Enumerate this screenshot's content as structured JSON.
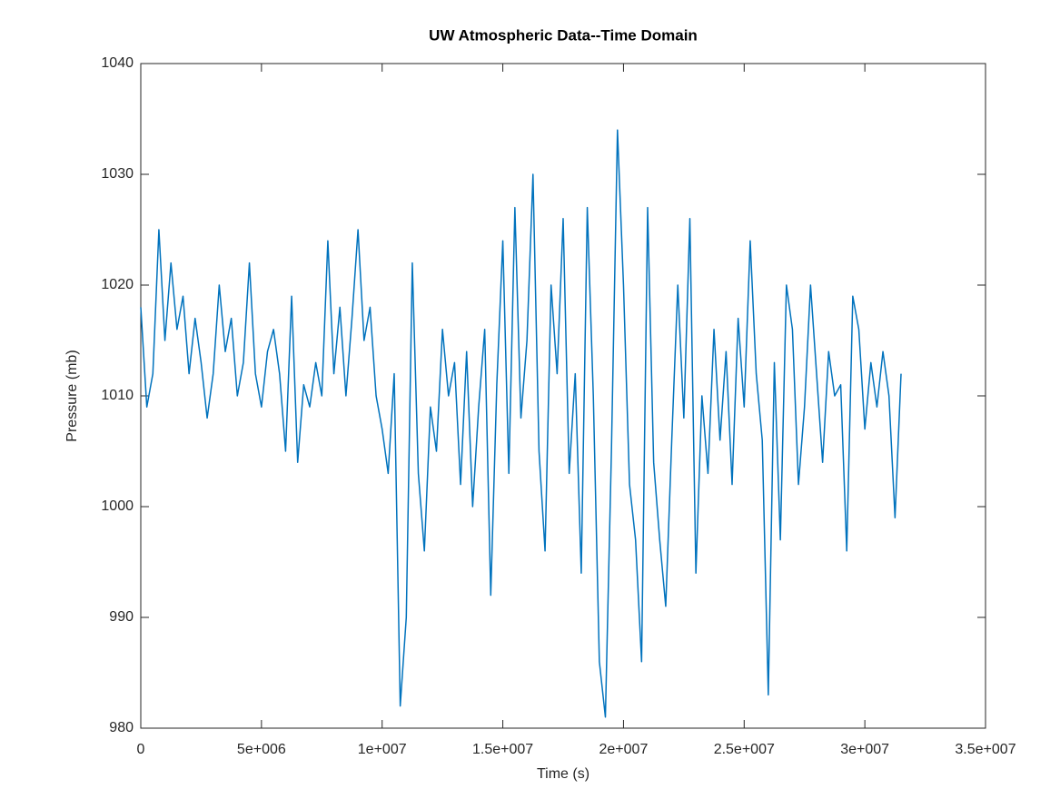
{
  "chart_data": {
    "type": "line",
    "title": "UW Atmospheric Data--Time Domain",
    "xlabel": "Time (s)",
    "ylabel": "Pressure (mb)",
    "color": "#0072bd",
    "x": [
      0,
      250000,
      500000,
      750000,
      1000000,
      1250000,
      1500000,
      1750000,
      2000000,
      2250000,
      2500000,
      2750000,
      3000000,
      3250000,
      3500000,
      3750000,
      4000000,
      4250000,
      4500000,
      4750000,
      5000000,
      5250000,
      5500000,
      5750000,
      6000000,
      6250000,
      6500000,
      6750000,
      7000000,
      7250000,
      7500000,
      7750000,
      8000000,
      8250000,
      8500000,
      8750000,
      9000000,
      9250000,
      9500000,
      9750000,
      10000000,
      10250000,
      10500000,
      10750000,
      11000000,
      11250000,
      11500000,
      11750000,
      12000000,
      12250000,
      12500000,
      12750000,
      13000000,
      13250000,
      13500000,
      13750000,
      14000000,
      14250000,
      14500000,
      14750000,
      15000000,
      15250000,
      15500000,
      15750000,
      16000000,
      16250000,
      16500000,
      16750000,
      17000000,
      17250000,
      17500000,
      17750000,
      18000000,
      18250000,
      18500000,
      18750000,
      19000000,
      19250000,
      19500000,
      19750000,
      20000000,
      20250000,
      20500000,
      20750000,
      21000000,
      21250000,
      21500000,
      21750000,
      22000000,
      22250000,
      22500000,
      22750000,
      23000000,
      23250000,
      23500000,
      23750000,
      24000000,
      24250000,
      24500000,
      24750000,
      25000000,
      25250000,
      25500000,
      25750000,
      26000000,
      26250000,
      26500000,
      26750000,
      27000000,
      27250000,
      27500000,
      27750000,
      28000000,
      28250000,
      28500000,
      28750000,
      29000000,
      29250000,
      29500000,
      29750000,
      30000000,
      30250000,
      30500000,
      30750000,
      31000000,
      31250000,
      31500000
    ],
    "values": [
      1018,
      1009,
      1012,
      1025,
      1015,
      1022,
      1016,
      1019,
      1012,
      1017,
      1013,
      1008,
      1012,
      1020,
      1014,
      1017,
      1010,
      1013,
      1022,
      1012,
      1009,
      1014,
      1016,
      1012,
      1005,
      1019,
      1004,
      1011,
      1009,
      1013,
      1010,
      1024,
      1012,
      1018,
      1010,
      1017,
      1025,
      1015,
      1018,
      1010,
      1007,
      1003,
      1012,
      982,
      990,
      1022,
      1003,
      996,
      1009,
      1005,
      1016,
      1010,
      1013,
      1002,
      1014,
      1000,
      1009,
      1016,
      992,
      1011,
      1024,
      1003,
      1027,
      1008,
      1015,
      1030,
      1005,
      996,
      1020,
      1012,
      1026,
      1003,
      1012,
      994,
      1027,
      1010,
      986,
      981,
      1005,
      1034,
      1020,
      1002,
      997,
      986,
      1027,
      1004,
      997,
      991,
      1006,
      1020,
      1008,
      1026,
      994,
      1010,
      1003,
      1016,
      1006,
      1014,
      1002,
      1017,
      1009,
      1024,
      1012,
      1006,
      983,
      1013,
      997,
      1020,
      1016,
      1002,
      1009,
      1020,
      1012,
      1004,
      1014,
      1010,
      1011,
      996,
      1019,
      1016,
      1007,
      1013,
      1009,
      1014,
      1010,
      999,
      1012
    ],
    "xlim": [
      0,
      35000000
    ],
    "xticks": [
      0,
      {
        "value": 5000000,
        "label": "5e+006"
      },
      {
        "value": 10000000,
        "label": "1e+007"
      },
      {
        "value": 15000000,
        "label": "1.5e+007"
      },
      {
        "value": 20000000,
        "label": "2e+007"
      },
      {
        "value": 25000000,
        "label": "2.5e+007"
      },
      {
        "value": 30000000,
        "label": "3e+007"
      },
      {
        "value": 35000000,
        "label": "3.5e+007"
      }
    ],
    "ylim": [
      980,
      1040
    ],
    "yticks": [
      980,
      990,
      1000,
      1010,
      1020,
      1030,
      1040
    ],
    "grid": false
  }
}
